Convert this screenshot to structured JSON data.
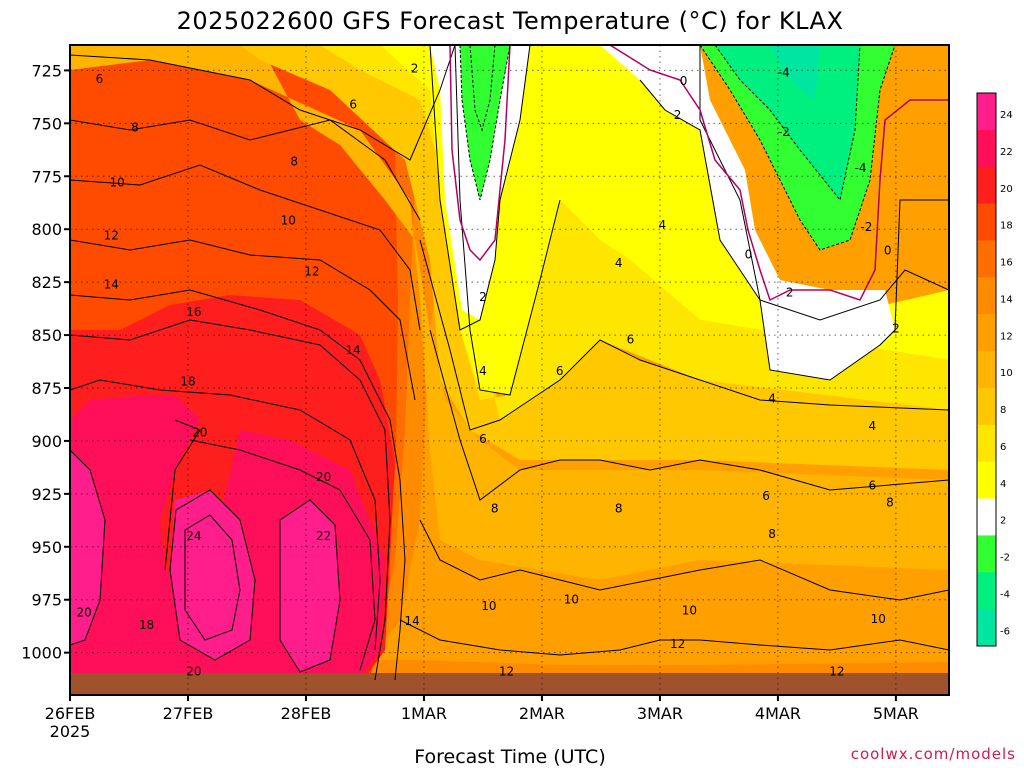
{
  "chart_data": {
    "type": "heatmap",
    "title": "2025022600 GFS Forecast Temperature (°C) for KLAX",
    "xlabel": "Forecast Time (UTC)",
    "ylabel": "",
    "credit": "coolwx.com/models",
    "x_ticks": [
      "26FEB",
      "27FEB",
      "28FEB",
      "1MAR",
      "2MAR",
      "3MAR",
      "4MAR",
      "5MAR"
    ],
    "x_year": "2025",
    "x_range_days": [
      0,
      7.45
    ],
    "y_ticks": [
      725,
      750,
      775,
      800,
      825,
      850,
      875,
      900,
      925,
      950,
      975,
      1000
    ],
    "y_range_hpa": [
      713,
      1020
    ],
    "grid": true,
    "colorbar": {
      "ticks": [
        24,
        22,
        20,
        18,
        16,
        14,
        12,
        10,
        8,
        6,
        4,
        2,
        -2,
        -4,
        -6
      ],
      "colors": [
        "#ff1e8c",
        "#ff0f5a",
        "#ff1e1e",
        "#ff4b00",
        "#ff6e00",
        "#ff8c00",
        "#ffa000",
        "#ffb400",
        "#ffc800",
        "#ffe600",
        "#ffff00",
        "#ffffff",
        "#32ff32",
        "#00f080",
        "#00e6a0"
      ]
    },
    "contour_labels": [
      {
        "text": "6",
        "day": 0.25,
        "p": 729
      },
      {
        "text": "8",
        "day": 0.55,
        "p": 752
      },
      {
        "text": "10",
        "day": 0.4,
        "p": 778
      },
      {
        "text": "12",
        "day": 0.35,
        "p": 803
      },
      {
        "text": "14",
        "day": 0.35,
        "p": 826
      },
      {
        "text": "16",
        "day": 1.05,
        "p": 839
      },
      {
        "text": "18",
        "day": 1.0,
        "p": 872
      },
      {
        "text": "20",
        "day": 1.1,
        "p": 896
      },
      {
        "text": "24",
        "day": 1.05,
        "p": 945
      },
      {
        "text": "20",
        "day": 0.12,
        "p": 981
      },
      {
        "text": "18",
        "day": 0.65,
        "p": 987
      },
      {
        "text": "20",
        "day": 1.05,
        "p": 1009
      },
      {
        "text": "22",
        "day": 2.15,
        "p": 945
      },
      {
        "text": "20",
        "day": 2.15,
        "p": 917
      },
      {
        "text": "6",
        "day": 2.4,
        "p": 741
      },
      {
        "text": "8",
        "day": 1.9,
        "p": 768
      },
      {
        "text": "10",
        "day": 1.85,
        "p": 796
      },
      {
        "text": "12",
        "day": 2.05,
        "p": 820
      },
      {
        "text": "14",
        "day": 2.4,
        "p": 857
      },
      {
        "text": "14",
        "day": 2.9,
        "p": 985
      },
      {
        "text": "2",
        "day": 2.92,
        "p": 724
      },
      {
        "text": "2",
        "day": 3.5,
        "p": 832
      },
      {
        "text": "4",
        "day": 3.5,
        "p": 867
      },
      {
        "text": "6",
        "day": 3.5,
        "p": 899
      },
      {
        "text": "8",
        "day": 3.6,
        "p": 932
      },
      {
        "text": "10",
        "day": 3.55,
        "p": 978
      },
      {
        "text": "12",
        "day": 3.7,
        "p": 1009
      },
      {
        "text": "6",
        "day": 4.15,
        "p": 867
      },
      {
        "text": "10",
        "day": 4.25,
        "p": 975
      },
      {
        "text": "8",
        "day": 4.65,
        "p": 932
      },
      {
        "text": "6",
        "day": 4.75,
        "p": 852
      },
      {
        "text": "4",
        "day": 4.65,
        "p": 816
      },
      {
        "text": "4",
        "day": 5.02,
        "p": 798
      },
      {
        "text": "2",
        "day": 5.15,
        "p": 746
      },
      {
        "text": "0",
        "day": 5.2,
        "p": 730
      },
      {
        "text": "10",
        "day": 5.25,
        "p": 980
      },
      {
        "text": "12",
        "day": 5.15,
        "p": 996
      },
      {
        "text": "6",
        "day": 5.9,
        "p": 926
      },
      {
        "text": "8",
        "day": 5.95,
        "p": 944
      },
      {
        "text": "4",
        "day": 5.95,
        "p": 880
      },
      {
        "text": "2",
        "day": 6.1,
        "p": 830
      },
      {
        "text": "0",
        "day": 5.75,
        "p": 812
      },
      {
        "text": "-4",
        "day": 6.05,
        "p": 726
      },
      {
        "text": "-2",
        "day": 6.05,
        "p": 754
      },
      {
        "text": "-4",
        "day": 6.7,
        "p": 771
      },
      {
        "text": "-2",
        "day": 6.75,
        "p": 799
      },
      {
        "text": "0",
        "day": 6.93,
        "p": 810
      },
      {
        "text": "2",
        "day": 7.0,
        "p": 847
      },
      {
        "text": "4",
        "day": 6.8,
        "p": 893
      },
      {
        "text": "6",
        "day": 6.8,
        "p": 921
      },
      {
        "text": "8",
        "day": 6.95,
        "p": 929
      },
      {
        "text": "10",
        "day": 6.85,
        "p": 984
      },
      {
        "text": "12",
        "day": 6.5,
        "p": 1009
      }
    ]
  }
}
